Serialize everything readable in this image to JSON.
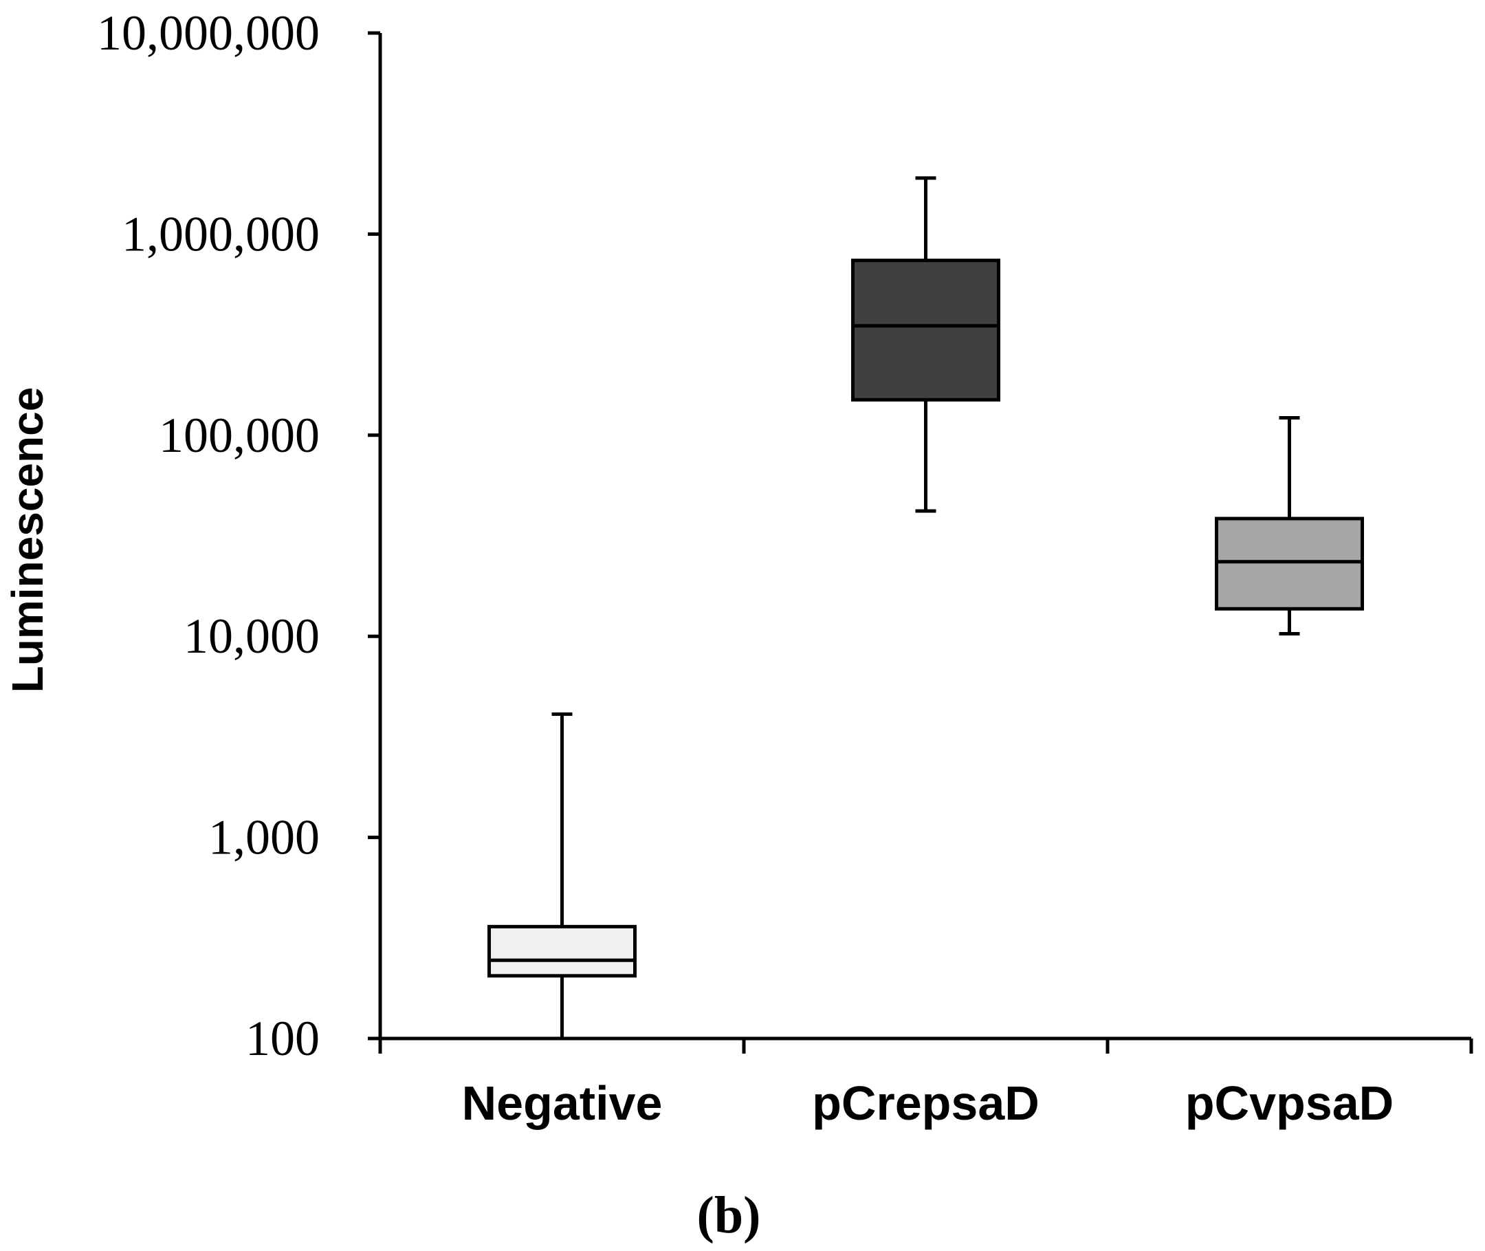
{
  "chart_data": {
    "type": "boxplot",
    "title": "",
    "xlabel": "",
    "ylabel": "Luminescence",
    "yscale": "log",
    "ylim": [
      100,
      10000000
    ],
    "y_ticks": [
      100,
      1000,
      10000,
      100000,
      1000000,
      10000000
    ],
    "y_tick_labels": [
      "100",
      "1,000",
      "10,000",
      "100,000",
      "1,000,000",
      "10,000,000"
    ],
    "categories": [
      "Negative",
      "pCrepsaD",
      "pCvpsaD"
    ],
    "boxes": [
      {
        "name": "Negative",
        "min": 100,
        "q1": 205,
        "median": 245,
        "q3": 360,
        "max": 4100,
        "color": "#f0f0f0"
      },
      {
        "name": "pCrepsaD",
        "min": 42000,
        "q1": 150000,
        "median": 350000,
        "q3": 740000,
        "max": 1900000,
        "color": "#404040"
      },
      {
        "name": "pCvpsaD",
        "min": 10300,
        "q1": 13700,
        "median": 23500,
        "q3": 38500,
        "max": 122000,
        "color": "#a6a6a6"
      }
    ],
    "grid": false,
    "legend": "none",
    "panel_label": "(b)"
  }
}
